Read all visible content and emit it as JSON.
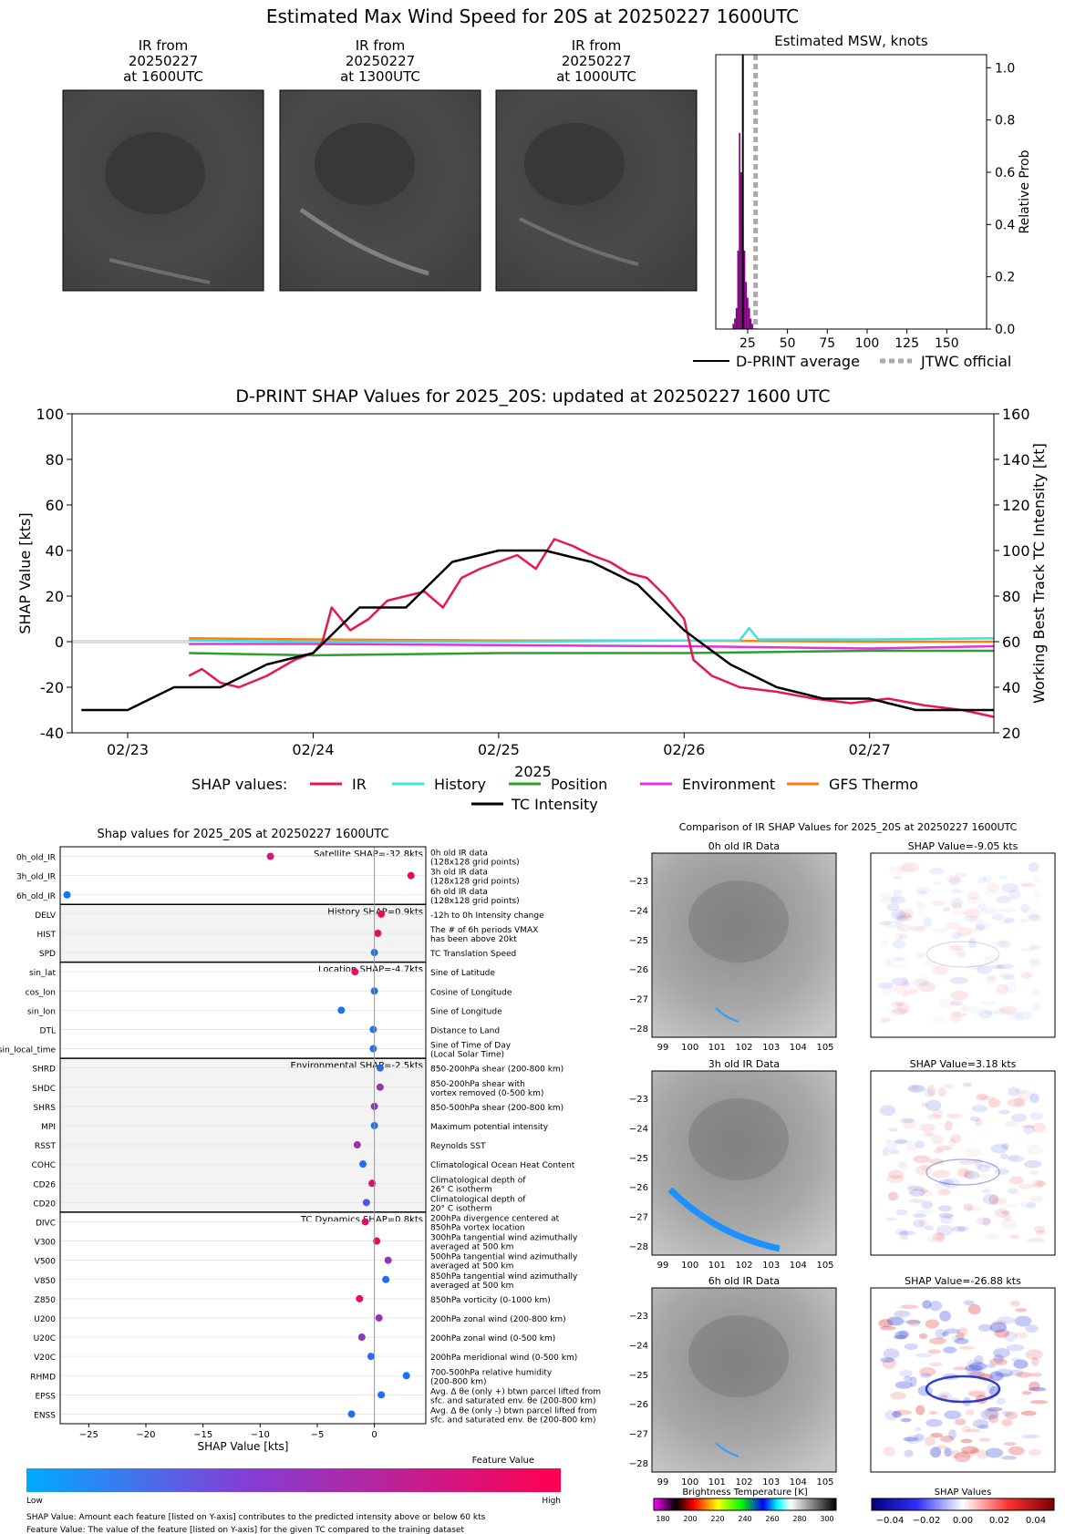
{
  "main_title": "Estimated Max Wind Speed for 20S at 20250227 1600UTC",
  "ir_panels": [
    {
      "l1": "IR from",
      "l2": "20250227",
      "l3": "at 1600UTC"
    },
    {
      "l1": "IR from",
      "l2": "20250227",
      "l3": "at 1300UTC"
    },
    {
      "l1": "IR from",
      "l2": "20250227",
      "l3": "at 1000UTC"
    }
  ],
  "colors": {
    "ir": "#e6194b",
    "history": "#40e0e0",
    "position": "#2ca02c",
    "environment": "#e033e0",
    "gfs": "#ff7f0e",
    "intensity": "#000000",
    "purple": "#800080",
    "jtwc": "#aaaaaa"
  },
  "chart_data": [
    {
      "type": "bar",
      "title": "Estimated MSW, knots",
      "ylabel": "Relative Prob",
      "xticks": [
        "25",
        "50",
        "75",
        "100",
        "125",
        "150"
      ],
      "yticks": [
        "0.0",
        "0.2",
        "0.4",
        "0.6",
        "0.8",
        "1.0"
      ],
      "xlim": [
        5,
        175
      ],
      "ylim": [
        0,
        1.05
      ],
      "bins": [
        [
          16,
          0.02
        ],
        [
          17,
          0.04
        ],
        [
          18,
          0.08
        ],
        [
          19,
          0.3
        ],
        [
          20,
          0.75
        ],
        [
          21,
          0.6
        ],
        [
          22,
          0.4
        ],
        [
          23,
          0.3
        ],
        [
          24,
          0.18
        ],
        [
          25,
          0.12
        ],
        [
          26,
          0.08
        ],
        [
          27,
          0.04
        ],
        [
          28,
          0.02
        ]
      ],
      "dprint_average": 22,
      "jtwc_official": 30,
      "legend": {
        "dprint": "D-PRINT average",
        "jtwc": "JTWC official"
      }
    },
    {
      "type": "line",
      "title": "D-PRINT SHAP Values for 2025_20S: updated at 20250227 1600 UTC",
      "ylabel": "SHAP Value [kts]",
      "y2label": "Working Best Track TC Intensity [kt]",
      "xlabel": "2025",
      "xticks": [
        "02/23",
        "02/24",
        "02/25",
        "02/26",
        "02/27"
      ],
      "yticks": [
        "-40",
        "-20",
        "0",
        "20",
        "40",
        "60",
        "80",
        "100"
      ],
      "y2ticks": [
        "20",
        "40",
        "60",
        "80",
        "100",
        "120",
        "140",
        "160"
      ],
      "ylim": [
        -40,
        100
      ],
      "y2lim": [
        20,
        160
      ],
      "legend_title": "SHAP values:",
      "series_names": [
        "IR",
        "History",
        "Position",
        "Environment",
        "GFS Thermo",
        "TC Intensity"
      ],
      "tc_intensity": [
        [
          -0.25,
          30
        ],
        [
          0,
          30
        ],
        [
          0.25,
          40
        ],
        [
          0.5,
          40
        ],
        [
          0.75,
          50
        ],
        [
          1,
          55
        ],
        [
          1.25,
          75
        ],
        [
          1.5,
          75
        ],
        [
          1.75,
          95
        ],
        [
          2,
          100
        ],
        [
          2.25,
          100
        ],
        [
          2.5,
          95
        ],
        [
          2.75,
          85
        ],
        [
          3,
          65
        ],
        [
          3.25,
          50
        ],
        [
          3.5,
          40
        ],
        [
          3.75,
          35
        ],
        [
          4,
          35
        ],
        [
          4.25,
          30
        ],
        [
          4.5,
          30
        ],
        [
          4.67,
          30
        ]
      ],
      "ir": [
        [
          0.33,
          -15
        ],
        [
          0.4,
          -12
        ],
        [
          0.5,
          -18
        ],
        [
          0.6,
          -20
        ],
        [
          0.75,
          -15
        ],
        [
          0.9,
          -8
        ],
        [
          1,
          -5
        ],
        [
          1.05,
          0
        ],
        [
          1.1,
          15
        ],
        [
          1.2,
          5
        ],
        [
          1.3,
          10
        ],
        [
          1.4,
          18
        ],
        [
          1.5,
          20
        ],
        [
          1.6,
          22
        ],
        [
          1.7,
          15
        ],
        [
          1.8,
          28
        ],
        [
          1.9,
          32
        ],
        [
          2,
          35
        ],
        [
          2.1,
          38
        ],
        [
          2.2,
          32
        ],
        [
          2.3,
          45
        ],
        [
          2.4,
          42
        ],
        [
          2.5,
          38
        ],
        [
          2.6,
          35
        ],
        [
          2.7,
          30
        ],
        [
          2.8,
          28
        ],
        [
          2.9,
          20
        ],
        [
          3,
          10
        ],
        [
          3.05,
          -8
        ],
        [
          3.15,
          -15
        ],
        [
          3.3,
          -20
        ],
        [
          3.5,
          -22
        ],
        [
          3.7,
          -25
        ],
        [
          3.9,
          -27
        ],
        [
          4.1,
          -25
        ],
        [
          4.3,
          -28
        ],
        [
          4.5,
          -30
        ],
        [
          4.67,
          -33
        ]
      ],
      "history": [
        [
          0.33,
          0.5
        ],
        [
          1,
          0
        ],
        [
          2,
          0
        ],
        [
          3,
          0.5
        ],
        [
          3.3,
          0.5
        ],
        [
          3.35,
          6
        ],
        [
          3.4,
          1
        ],
        [
          4,
          1
        ],
        [
          4.67,
          1.5
        ]
      ],
      "position": [
        [
          0.33,
          -5
        ],
        [
          1,
          -6
        ],
        [
          2,
          -5
        ],
        [
          3,
          -5
        ],
        [
          4,
          -4
        ],
        [
          4.67,
          -4
        ]
      ],
      "environment": [
        [
          0.33,
          -1
        ],
        [
          1,
          -1
        ],
        [
          2,
          -1.5
        ],
        [
          3,
          -2
        ],
        [
          4,
          -3
        ],
        [
          4.67,
          -2
        ]
      ],
      "gfs": [
        [
          0.33,
          1.5
        ],
        [
          1,
          1
        ],
        [
          2,
          0.5
        ],
        [
          3,
          0.5
        ],
        [
          4,
          0
        ],
        [
          4.67,
          0
        ]
      ]
    },
    {
      "type": "scatter",
      "title": "Shap values for 2025_20S at 20250227 1600UTC",
      "xlabel": "SHAP Value [kts]",
      "xticks": [
        "−25",
        "−20",
        "−15",
        "−10",
        "−5",
        "0"
      ],
      "xlim": [
        -27.5,
        4.5
      ],
      "groups": [
        {
          "label": "Satellite SHAP=-32.8kts",
          "rows": [
            {
              "name": "0h_old_IR",
              "desc1": "0h old IR data",
              "desc2": "(128x128 grid points)",
              "v": -9.1,
              "c": 0.85
            },
            {
              "name": "3h_old_IR",
              "desc1": "3h old IR data",
              "desc2": "(128x128 grid points)",
              "v": 3.2,
              "c": 0.95
            },
            {
              "name": "6h_old_IR",
              "desc1": "6h old IR data",
              "desc2": "(128x128 grid points)",
              "v": -26.9,
              "c": 0.05
            }
          ]
        },
        {
          "label": "History SHAP=0.9kts",
          "rows": [
            {
              "name": "DELV",
              "desc1": "-12h to 0h Intensity change",
              "desc2": "",
              "v": 0.6,
              "c": 0.95
            },
            {
              "name": "HIST",
              "desc1": "The # of 6h periods VMAX",
              "desc2": "has been above 20kt",
              "v": 0.3,
              "c": 0.9
            },
            {
              "name": "SPD",
              "desc1": "TC Translation Speed",
              "desc2": "",
              "v": 0.0,
              "c": 0.1
            }
          ]
        },
        {
          "label": "Location SHAP=-4.7kts",
          "rows": [
            {
              "name": "sin_lat",
              "desc1": "Sine of Latitude",
              "desc2": "",
              "v": -1.7,
              "c": 0.9
            },
            {
              "name": "cos_lon",
              "desc1": "Cosine of Longitude",
              "desc2": "",
              "v": 0.0,
              "c": 0.1
            },
            {
              "name": "sin_lon",
              "desc1": "Sine of Longitude",
              "desc2": "",
              "v": -2.9,
              "c": 0.1
            },
            {
              "name": "DTL",
              "desc1": "Distance to Land",
              "desc2": "",
              "v": -0.1,
              "c": 0.1
            },
            {
              "name": "sin_local_time",
              "desc1": "Sine of Time of Day",
              "desc2": "(Local Solar Time)",
              "v": -0.1,
              "c": 0.1
            }
          ]
        },
        {
          "label": "Environmental SHAP=-2.5kts",
          "rows": [
            {
              "name": "SHRD",
              "desc1": "850-200hPa shear (200-800 km)",
              "desc2": "",
              "v": 0.5,
              "c": 0.2
            },
            {
              "name": "SHDC",
              "desc1": "850-200hPa shear with",
              "desc2": "vortex removed (0-500 km)",
              "v": 0.5,
              "c": 0.6
            },
            {
              "name": "SHRS",
              "desc1": "850-500hPa shear (200-800 km)",
              "desc2": "",
              "v": 0.0,
              "c": 0.55
            },
            {
              "name": "MPI",
              "desc1": "Maximum potential intensity",
              "desc2": "",
              "v": 0.0,
              "c": 0.1
            },
            {
              "name": "RSST",
              "desc1": "Reynolds SST",
              "desc2": "",
              "v": -1.5,
              "c": 0.6
            },
            {
              "name": "COHC",
              "desc1": "Climatological Ocean Heat Content",
              "desc2": "",
              "v": -1.0,
              "c": 0.15
            },
            {
              "name": "CD26",
              "desc1": "Climatological depth of",
              "desc2": "26° C isotherm",
              "v": -0.2,
              "c": 0.9
            },
            {
              "name": "CD20",
              "desc1": "Climatological depth of",
              "desc2": "20° C isotherm",
              "v": -0.7,
              "c": 0.3
            }
          ]
        },
        {
          "label": "TC Dynamics SHAP=0.8kts",
          "rows": [
            {
              "name": "DIVC",
              "desc1": "200hPa divergence centered at",
              "desc2": "850hPa vortex location",
              "v": -0.8,
              "c": 0.9
            },
            {
              "name": "V300",
              "desc1": "300hPa tangential wind azimuthally",
              "desc2": "averaged at 500 km",
              "v": 0.2,
              "c": 0.95
            },
            {
              "name": "V500",
              "desc1": "500hPa tangential wind azimuthally",
              "desc2": "averaged at 500 km",
              "v": 1.2,
              "c": 0.55
            },
            {
              "name": "V850",
              "desc1": "850hPa tangential wind azimuthally",
              "desc2": "averaged at 500 km",
              "v": 1.0,
              "c": 0.15
            },
            {
              "name": "Z850",
              "desc1": "850hPa vorticity (0-1000 km)",
              "desc2": "",
              "v": -1.3,
              "c": 0.9
            },
            {
              "name": "U200",
              "desc1": "200hPa zonal wind (200-800 km)",
              "desc2": "",
              "v": 0.4,
              "c": 0.55
            },
            {
              "name": "U20C",
              "desc1": "200hPa zonal wind (0-500 km)",
              "desc2": "",
              "v": -1.1,
              "c": 0.55
            },
            {
              "name": "V20C",
              "desc1": "200hPa meridional wind (0-500 km)",
              "desc2": "",
              "v": -0.3,
              "c": 0.15
            },
            {
              "name": "RHMD",
              "desc1": "700-500hPa relative humidity",
              "desc2": "(200-800 km)",
              "v": 2.8,
              "c": 0.1
            },
            {
              "name": "EPSS",
              "desc1": "Avg. Δ θe (only +) btwn parcel lifted from",
              "desc2": "sfc. and saturated env. θe (200-800 km)",
              "v": 0.6,
              "c": 0.1
            },
            {
              "name": "ENSS",
              "desc1": "Avg. Δ θe (only -) btwn parcel lifted from",
              "desc2": "sfc. and saturated env. θe (200-800 km)",
              "v": -2.0,
              "c": 0.15
            }
          ]
        }
      ],
      "colorbar_title": "Feature Value",
      "colorbar_low": "Low",
      "colorbar_high": "High",
      "footnote1": "SHAP Value: Amount each feature [listed on Y-axis] contributes to the predicted intensity above or below 60 kts",
      "footnote2": "Feature Value: The value of the feature [listed on Y-axis] for the given TC compared to the training dataset"
    },
    {
      "type": "heatmap",
      "title": "Comparison of IR SHAP Values for 2025_20S at 20250227 1600UTC",
      "xticks": [
        "99",
        "100",
        "101",
        "102",
        "103",
        "104",
        "105"
      ],
      "yticks": [
        "−23",
        "−24",
        "−25",
        "−26",
        "−27",
        "−28"
      ],
      "rows": [
        {
          "ir_title": "0h old IR Data",
          "shap_title": "SHAP Value=-9.05 kts"
        },
        {
          "ir_title": "3h old IR Data",
          "shap_title": "SHAP Value=3.18 kts"
        },
        {
          "ir_title": "6h old IR Data",
          "shap_title": "SHAP Value=-26.88 kts"
        }
      ],
      "bt_title": "Brightness Temperature [K]",
      "bt_ticks": [
        "180",
        "200",
        "220",
        "240",
        "260",
        "280",
        "300"
      ],
      "sv_title": "SHAP Values",
      "sv_ticks": [
        "−0.04",
        "−0.02",
        "0.00",
        "0.02",
        "0.04"
      ]
    }
  ]
}
